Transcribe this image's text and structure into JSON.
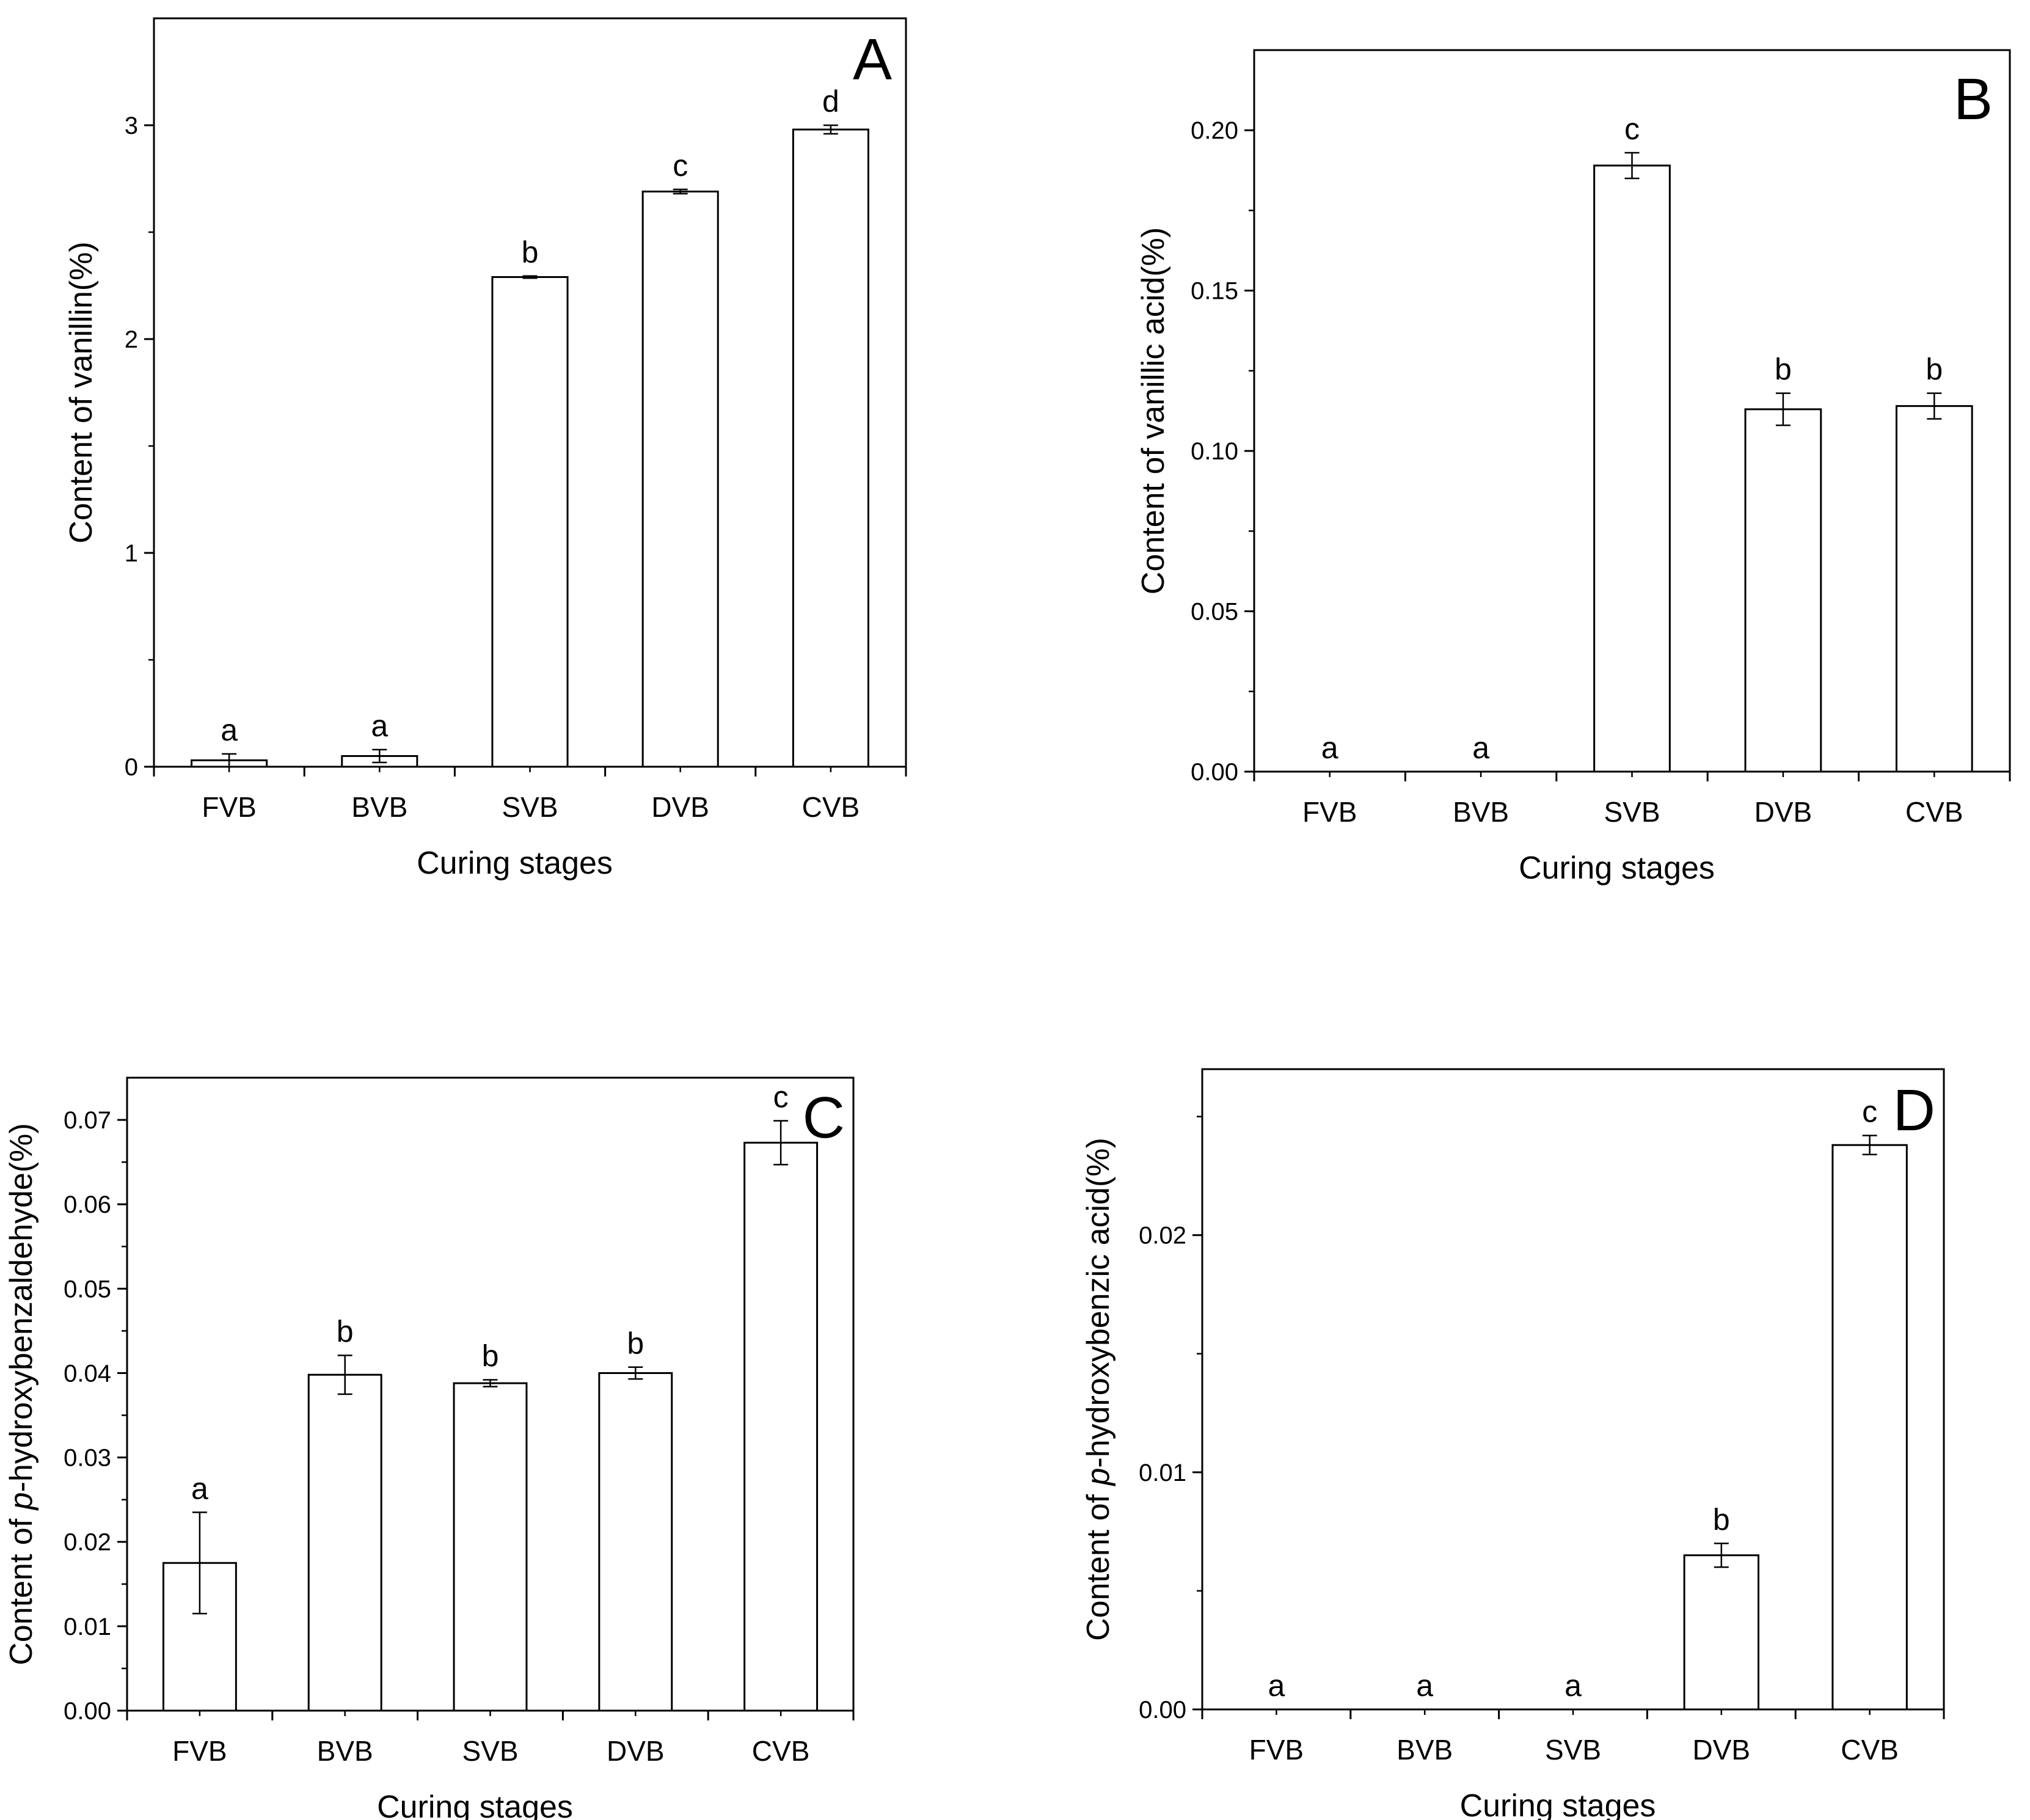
{
  "figure": {
    "background": "#ffffff",
    "stroke_color": "#000000"
  },
  "chart_data": [
    {
      "type": "bar",
      "panel": "A",
      "categories": [
        "FVB",
        "BVB",
        "SVB",
        "DVB",
        "CVB"
      ],
      "values": [
        0.03,
        0.05,
        2.29,
        2.69,
        2.98
      ],
      "errors": [
        0.03,
        0.03,
        0.005,
        0.01,
        0.02
      ],
      "significance": [
        "a",
        "a",
        "b",
        "c",
        "d"
      ],
      "xlabel": "Curing stages",
      "ylabel": "Content of vanillin(%)",
      "ylim": [
        0,
        3.5
      ],
      "yticks": [
        0,
        1,
        2,
        3
      ],
      "ytick_labels": [
        "0",
        "1",
        "2",
        "3"
      ]
    },
    {
      "type": "bar",
      "panel": "B",
      "categories": [
        "FVB",
        "BVB",
        "SVB",
        "DVB",
        "CVB"
      ],
      "values": [
        0,
        0,
        0.189,
        0.113,
        0.114
      ],
      "errors": [
        0,
        0,
        0.004,
        0.005,
        0.004
      ],
      "significance": [
        "a",
        "a",
        "c",
        "b",
        "b"
      ],
      "xlabel": "Curing stages",
      "ylabel": "Content of vanillic acid(%)",
      "ylim": [
        0,
        0.225
      ],
      "yticks": [
        0,
        0.05,
        0.1,
        0.15,
        0.2
      ],
      "ytick_labels": [
        "0.00",
        "0.05",
        "0.10",
        "0.15",
        "0.20"
      ]
    },
    {
      "type": "bar",
      "panel": "C",
      "categories": [
        "FVB",
        "BVB",
        "SVB",
        "DVB",
        "CVB"
      ],
      "values": [
        0.0175,
        0.0398,
        0.0388,
        0.04,
        0.0673
      ],
      "errors": [
        0.006,
        0.0023,
        0.0004,
        0.0007,
        0.0026
      ],
      "significance": [
        "a",
        "b",
        "b",
        "b",
        "c"
      ],
      "xlabel": "Curing stages",
      "ylabel_prefix": "Content of ",
      "ylabel_italic": "p",
      "ylabel_suffix": "-hydroxybenzaldehyde(%)",
      "ylim": [
        0,
        0.075
      ],
      "yticks": [
        0,
        0.01,
        0.02,
        0.03,
        0.04,
        0.05,
        0.06,
        0.07
      ],
      "ytick_labels": [
        "0.00",
        "0.01",
        "0.02",
        "0.03",
        "0.04",
        "0.05",
        "0.06",
        "0.07"
      ]
    },
    {
      "type": "bar",
      "panel": "D",
      "categories": [
        "FVB",
        "BVB",
        "SVB",
        "DVB",
        "CVB"
      ],
      "values": [
        0,
        0,
        0,
        0.0065,
        0.0238
      ],
      "errors": [
        0,
        0,
        0,
        0.0005,
        0.0004
      ],
      "significance": [
        "a",
        "a",
        "a",
        "b",
        "c"
      ],
      "xlabel": "Curing stages",
      "ylabel_prefix": "Content of ",
      "ylabel_italic": "p",
      "ylabel_suffix": "-hydroxybenzic acid(%)",
      "ylim": [
        0,
        0.027
      ],
      "yticks": [
        0,
        0.01,
        0.02
      ],
      "ytick_labels": [
        "0.00",
        "0.01",
        "0.02"
      ]
    }
  ]
}
